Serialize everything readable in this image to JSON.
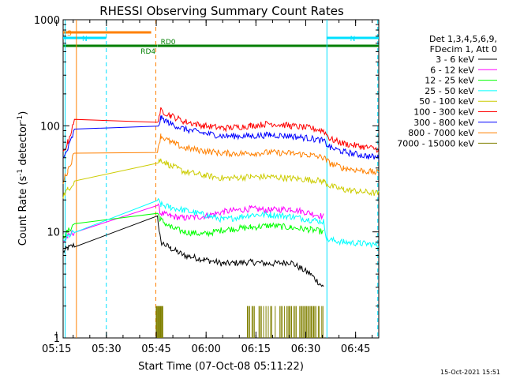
{
  "chart_data": {
    "type": "line",
    "title": "RHESSI Observing Summary Count Rates",
    "xlabel": "Start Time (07-Oct-08 05:11:22)",
    "ylabel_main": "Count Rate (s",
    "ylabel_sup1": "-1",
    "ylabel_mid": " detector",
    "ylabel_sup2": "-1",
    "ylabel_end": ")",
    "yscale": "log",
    "ylim": [
      1,
      1000
    ],
    "xlim_minutes": [
      5.6,
      100.6
    ],
    "x_unit": "minutes after 05:11:22",
    "x_ticks": [
      {
        "t": 3.63,
        "label": "05:15"
      },
      {
        "t": 18.63,
        "label": "05:30"
      },
      {
        "t": 33.63,
        "label": "05:45"
      },
      {
        "t": 48.63,
        "label": "06:00"
      },
      {
        "t": 63.63,
        "label": "06:15"
      },
      {
        "t": 78.63,
        "label": "06:30"
      },
      {
        "t": 93.63,
        "label": "06:45"
      }
    ],
    "y_ticks": [
      {
        "v": 1,
        "label": "1"
      },
      {
        "v": 10,
        "label": "10"
      },
      {
        "v": 100,
        "label": "100"
      },
      {
        "v": 1000,
        "label": "1000"
      }
    ],
    "legend_header": [
      "Det 1,3,4,5,6,9,",
      "FDecim 1, Att 0"
    ],
    "legend_position": "right",
    "timestamp": "15-Oct-2021 15:51",
    "flags": [
      {
        "label": "S",
        "color": "#ff8000",
        "t_start": 5.6,
        "t_end": 32.1
      },
      {
        "label": "N",
        "color": "#00e0ff",
        "t_start": 5.6,
        "t_end": 18.6
      },
      {
        "label": "N",
        "color": "#00e0ff",
        "t_start": 84.9,
        "t_end": 100.6
      },
      {
        "label": "RD4",
        "color": "#007f00",
        "t_start": 5.6,
        "t_end": 33.9
      },
      {
        "label": "RD0",
        "color": "#007f00",
        "t_start": 34.0,
        "t_end": 100.6
      }
    ],
    "markers": [
      {
        "t": 6.2,
        "color": "#00e0ff",
        "style": "solid"
      },
      {
        "t": 9.6,
        "color": "#ff8000",
        "style": "solid"
      },
      {
        "t": 18.6,
        "color": "#00e0ff",
        "style": "dashed"
      },
      {
        "t": 33.5,
        "color": "#ff8000",
        "style": "dashed"
      },
      {
        "t": 85.0,
        "color": "#00e0ff",
        "style": "solid"
      },
      {
        "t": 100.3,
        "color": "#00e0ff",
        "style": "dashed"
      }
    ],
    "series": [
      {
        "name": "3 - 6 keV",
        "color": "#000000",
        "x": [
          5.6,
          7.0,
          9.0,
          34.0,
          35.0,
          38.0,
          42.0,
          48.0,
          54.0,
          62.0,
          68.0,
          74.0,
          80.0,
          84.0
        ],
        "y": [
          6.5,
          7.0,
          7.5,
          14.0,
          8.0,
          7.0,
          6.0,
          5.5,
          5.0,
          5.2,
          5.0,
          5.2,
          4.0,
          3.0
        ]
      },
      {
        "name": "6 - 12 keV",
        "color": "#ff00ff",
        "x": [
          5.6,
          7.0,
          9.0,
          34.0,
          35.0,
          38.0,
          42.0,
          48.0,
          54.0,
          62.0,
          68.0,
          74.0,
          80.0,
          84.0
        ],
        "y": [
          8.0,
          9.0,
          10.0,
          18.0,
          15.0,
          14.0,
          13.5,
          14.0,
          15.5,
          16.5,
          16.0,
          16.5,
          15.0,
          14.0
        ]
      },
      {
        "name": "12 - 25 keV",
        "color": "#00ff00",
        "x": [
          5.6,
          7.0,
          9.0,
          34.0,
          35.0,
          38.0,
          42.0,
          48.0,
          54.0,
          62.0,
          68.0,
          74.0,
          80.0,
          84.0
        ],
        "y": [
          9.0,
          10.0,
          12.0,
          15.0,
          13.0,
          11.0,
          10.0,
          9.5,
          10.5,
          11.0,
          11.5,
          11.0,
          10.5,
          10.0
        ]
      },
      {
        "name": "25 - 50 keV",
        "color": "#00ffff",
        "x": [
          5.6,
          7.0,
          9.0,
          34.0,
          35.0,
          38.0,
          42.0,
          48.0,
          54.0,
          62.0,
          68.0,
          74.0,
          80.0,
          84.0,
          85.0,
          90.0,
          95.0,
          100.6
        ],
        "y": [
          8.0,
          9.0,
          10.0,
          20.0,
          18.0,
          17.0,
          16.0,
          14.5,
          13.0,
          14.5,
          14.5,
          14.0,
          13.0,
          12.5,
          8.5,
          8.0,
          7.8,
          7.5
        ]
      },
      {
        "name": "50 - 100 keV",
        "color": "#cccc00",
        "x": [
          5.6,
          7.0,
          9.0,
          34.0,
          35.0,
          38.0,
          42.0,
          48.0,
          54.0,
          62.0,
          68.0,
          74.0,
          80.0,
          84.0,
          86.0,
          90.0,
          95.0,
          100.6
        ],
        "y": [
          22.0,
          25.0,
          30.0,
          45.0,
          48.0,
          42.0,
          37.0,
          34.0,
          32.0,
          33.0,
          33.0,
          32.0,
          31.0,
          30.0,
          27.0,
          25.0,
          24.0,
          23.0
        ]
      },
      {
        "name": "100 - 300 keV",
        "color": "#ff0000",
        "x": [
          5.6,
          7.0,
          9.0,
          34.0,
          35.0,
          38.0,
          42.0,
          48.0,
          54.0,
          62.0,
          68.0,
          74.0,
          80.0,
          84.0,
          86.0,
          90.0,
          95.0,
          100.6
        ],
        "y": [
          55.0,
          70.0,
          110.0,
          110.0,
          140.0,
          125.0,
          110.0,
          100.0,
          95.0,
          100.0,
          105.0,
          100.0,
          95.0,
          90.0,
          75.0,
          68.0,
          64.0,
          60.0
        ]
      },
      {
        "name": "300 - 800 keV",
        "color": "#0000ff",
        "x": [
          5.6,
          7.0,
          9.0,
          34.0,
          35.0,
          38.0,
          42.0,
          48.0,
          54.0,
          62.0,
          68.0,
          74.0,
          80.0,
          84.0,
          86.0,
          90.0,
          95.0,
          100.6
        ],
        "y": [
          48.0,
          60.0,
          90.0,
          95.0,
          118.0,
          105.0,
          93.0,
          85.0,
          80.0,
          80.0,
          82.0,
          80.0,
          76.0,
          72.0,
          62.0,
          57.0,
          53.0,
          50.0
        ]
      },
      {
        "name": "800 - 7000 keV",
        "color": "#ff8000",
        "x": [
          5.6,
          7.0,
          9.0,
          34.0,
          35.0,
          38.0,
          42.0,
          48.0,
          54.0,
          62.0,
          68.0,
          74.0,
          80.0,
          84.0,
          86.0,
          90.0,
          95.0,
          100.6
        ],
        "y": [
          30.0,
          38.0,
          55.0,
          60.0,
          80.0,
          70.0,
          62.0,
          58.0,
          55.0,
          55.0,
          56.0,
          55.0,
          53.0,
          50.0,
          44.0,
          40.0,
          38.0,
          36.0
        ]
      },
      {
        "name": "7000 - 15000 keV",
        "color": "#808000",
        "x": [
          33.6,
          40.0,
          50.0,
          60.0,
          70.0,
          80.0,
          84.0,
          90.0,
          100.6
        ],
        "y": [
          1.0,
          1.0,
          1.0,
          1.0,
          1.0,
          1.0,
          1.0,
          1.0,
          1.0
        ]
      }
    ]
  }
}
